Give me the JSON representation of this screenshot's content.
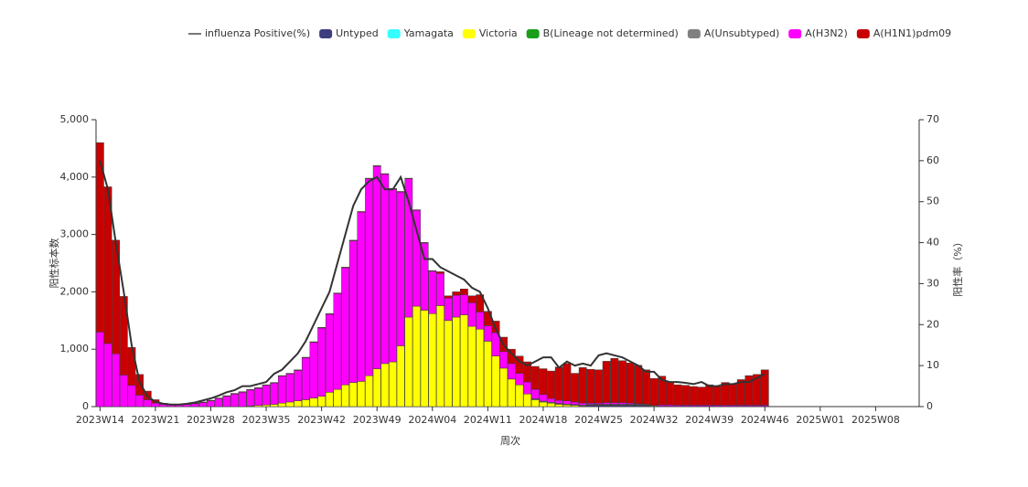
{
  "chart_data": {
    "type": "bar-line",
    "x_label": "周次",
    "y_label": "阳性标本数",
    "y2_label": "阳性率（%）",
    "categories": [
      "2023W14",
      null,
      null,
      null,
      null,
      null,
      null,
      "2023W21",
      null,
      null,
      null,
      null,
      null,
      null,
      "2023W28",
      null,
      null,
      null,
      null,
      null,
      null,
      "2023W35",
      null,
      null,
      null,
      null,
      null,
      null,
      "2023W42",
      null,
      null,
      null,
      null,
      null,
      null,
      "2023W49",
      null,
      null,
      null,
      null,
      null,
      null,
      "2024W04",
      null,
      null,
      null,
      null,
      null,
      null,
      "2024W11",
      null,
      null,
      null,
      null,
      null,
      null,
      "2024W18",
      null,
      null,
      null,
      null,
      null,
      null,
      "2024W25",
      null,
      null,
      null,
      null,
      null,
      null,
      "2024W32",
      null,
      null,
      null,
      null,
      null,
      null,
      "2024W39",
      null,
      null,
      null,
      null,
      null,
      null,
      "2024W46",
      null,
      null,
      null,
      null,
      null,
      null,
      "2025W01",
      null,
      null,
      null,
      null,
      null,
      null,
      "2025W08",
      null,
      null,
      null,
      null,
      null
    ],
    "ylim": [
      0,
      5000
    ],
    "yticks": [
      0,
      {
        "value": 1000,
        "label": "1,000"
      },
      {
        "value": 2000,
        "label": "2,000"
      },
      {
        "value": 3000,
        "label": "3,000"
      },
      {
        "value": 4000,
        "label": "4,000"
      },
      {
        "value": 5000,
        "label": "5,000"
      }
    ],
    "y2lim": [
      0,
      70
    ],
    "y2ticks": [
      0,
      10,
      20,
      30,
      40,
      50,
      60,
      70
    ],
    "series": [
      {
        "name": "influenza Positive(%)",
        "type": "line",
        "axis": "y2",
        "color": "#333333",
        "values": [
          60,
          53,
          40,
          28,
          15,
          6,
          2.5,
          1.2,
          0.7,
          0.5,
          0.5,
          0.7,
          1,
          1.5,
          2,
          2.7,
          3.5,
          4,
          5,
          5,
          5.5,
          6,
          8,
          9,
          11,
          13,
          16,
          20,
          24,
          28,
          35,
          42,
          49,
          53,
          55,
          56,
          53,
          53,
          56,
          50,
          43,
          36,
          36,
          34,
          33,
          32,
          31,
          29,
          28,
          24,
          19,
          15,
          13,
          11,
          10,
          11,
          12,
          12,
          9.5,
          11,
          10,
          10.5,
          10,
          12.5,
          13,
          12.5,
          12,
          11,
          10,
          8.5,
          8.5,
          6.5,
          6,
          6,
          5.8,
          5.5,
          6,
          5,
          5,
          5.5,
          5.5,
          6,
          6,
          7,
          8,
          null,
          null,
          null,
          null,
          null,
          null,
          null,
          null,
          null,
          null,
          null,
          null,
          null,
          null,
          null,
          null,
          null,
          null,
          null
        ]
      },
      {
        "name": "Untyped",
        "color": "#3d3d80",
        "values": [
          0,
          0,
          0,
          0,
          0,
          0,
          0,
          0,
          0,
          0,
          0,
          0,
          0,
          0,
          0,
          0,
          0,
          0,
          0,
          0,
          0,
          0,
          0,
          0,
          0,
          0,
          0,
          0,
          0,
          0,
          0,
          0,
          0,
          0,
          0,
          0,
          0,
          0,
          0,
          0,
          0,
          0,
          0,
          0,
          0,
          0,
          0,
          0,
          0,
          0,
          0,
          0,
          0,
          0,
          0,
          0,
          0,
          0,
          0,
          0,
          0,
          0,
          20,
          20,
          20,
          20,
          20,
          20,
          20,
          20,
          0,
          0,
          0,
          0,
          0,
          0,
          0,
          0,
          0,
          0,
          0,
          0,
          0,
          0,
          0,
          null,
          null,
          null,
          null,
          null,
          null,
          null,
          null,
          null,
          null,
          null,
          null,
          null,
          null,
          null,
          null,
          null,
          null,
          null
        ]
      },
      {
        "name": "Yamagata",
        "color": "#33ffff",
        "values": [
          0,
          0,
          0,
          0,
          0,
          0,
          0,
          0,
          0,
          0,
          0,
          0,
          0,
          0,
          0,
          0,
          0,
          0,
          0,
          0,
          0,
          0,
          0,
          0,
          0,
          0,
          0,
          0,
          0,
          0,
          0,
          0,
          0,
          0,
          0,
          0,
          0,
          0,
          0,
          0,
          0,
          0,
          0,
          0,
          0,
          0,
          0,
          0,
          0,
          0,
          0,
          0,
          0,
          0,
          0,
          0,
          0,
          0,
          0,
          0,
          0,
          0,
          0,
          0,
          0,
          0,
          0,
          0,
          0,
          0,
          0,
          0,
          0,
          0,
          0,
          0,
          0,
          0,
          0,
          0,
          0,
          0,
          0,
          0,
          0,
          null,
          null,
          null,
          null,
          null,
          null,
          null,
          null,
          null,
          null,
          null,
          null,
          null,
          null,
          null,
          null,
          null,
          null,
          null
        ]
      },
      {
        "name": "Victoria",
        "color": "#ffff00",
        "values": [
          0,
          0,
          0,
          0,
          0,
          0,
          0,
          0,
          0,
          0,
          0,
          0,
          0,
          0,
          0,
          0,
          0,
          0,
          0,
          10,
          20,
          30,
          40,
          60,
          80,
          100,
          120,
          150,
          180,
          250,
          300,
          380,
          420,
          440,
          540,
          660,
          750,
          780,
          1060,
          1560,
          1750,
          1680,
          1620,
          1760,
          1500,
          1560,
          1600,
          1400,
          1350,
          1140,
          880,
          670,
          480,
          380,
          220,
          120,
          80,
          60,
          40,
          30,
          20,
          10,
          5,
          5,
          5,
          5,
          5,
          5,
          5,
          5,
          5,
          5,
          5,
          5,
          5,
          5,
          5,
          5,
          5,
          5,
          5,
          5,
          5,
          5,
          5,
          null,
          null,
          null,
          null,
          null,
          null,
          null,
          null,
          null,
          null,
          null,
          null,
          null,
          null,
          null,
          null,
          null,
          null,
          null
        ]
      },
      {
        "name": "B(Lineage not determined)",
        "color": "#1a9e1a",
        "values": [
          0,
          0,
          0,
          0,
          0,
          0,
          0,
          0,
          0,
          0,
          0,
          0,
          0,
          0,
          0,
          0,
          0,
          0,
          0,
          0,
          0,
          0,
          0,
          0,
          0,
          0,
          0,
          0,
          0,
          0,
          0,
          0,
          0,
          0,
          0,
          0,
          0,
          0,
          0,
          0,
          0,
          0,
          0,
          0,
          0,
          0,
          0,
          0,
          0,
          0,
          0,
          0,
          0,
          0,
          0,
          0,
          0,
          0,
          0,
          0,
          0,
          0,
          0,
          0,
          0,
          0,
          0,
          0,
          0,
          0,
          0,
          0,
          0,
          0,
          0,
          0,
          0,
          0,
          0,
          0,
          0,
          0,
          0,
          0,
          0,
          null,
          null,
          null,
          null,
          null,
          null,
          null,
          null,
          null,
          null,
          null,
          null,
          null,
          null,
          null,
          null,
          null,
          null,
          null
        ]
      },
      {
        "name": "A(Unsubtyped)",
        "color": "#808080",
        "values": [
          0,
          0,
          0,
          0,
          0,
          0,
          0,
          0,
          0,
          0,
          0,
          0,
          0,
          0,
          0,
          0,
          0,
          0,
          0,
          0,
          0,
          0,
          0,
          0,
          0,
          0,
          0,
          0,
          0,
          0,
          0,
          0,
          0,
          0,
          0,
          0,
          0,
          0,
          0,
          0,
          0,
          0,
          0,
          0,
          0,
          0,
          0,
          0,
          0,
          0,
          0,
          0,
          0,
          0,
          0,
          15,
          15,
          15,
          15,
          15,
          15,
          15,
          15,
          15,
          15,
          15,
          15,
          15,
          15,
          15,
          15,
          0,
          0,
          0,
          0,
          0,
          0,
          0,
          0,
          0,
          0,
          0,
          0,
          0,
          0,
          null,
          null,
          null,
          null,
          null,
          null,
          null,
          null,
          null,
          null,
          null,
          null,
          null,
          null,
          null,
          null,
          null,
          null,
          null
        ]
      },
      {
        "name": "A(H3N2)",
        "color": "#ff00ff",
        "values": [
          1300,
          1100,
          920,
          550,
          370,
          200,
          120,
          60,
          40,
          30,
          30,
          40,
          50,
          70,
          100,
          140,
          180,
          220,
          250,
          280,
          300,
          340,
          370,
          470,
          490,
          530,
          730,
          970,
          1190,
          1360,
          1670,
          2040,
          2470,
          2950,
          3430,
          3530,
          3300,
          3010,
          2680,
          2410,
          1670,
          1170,
          740,
          560,
          390,
          380,
          350,
          410,
          300,
          270,
          410,
          290,
          270,
          200,
          210,
          165,
          115,
          65,
          55,
          55,
          45,
          35,
          20,
          20,
          30,
          30,
          30,
          20,
          10,
          0,
          0,
          25,
          25,
          20,
          20,
          20,
          20,
          20,
          20,
          20,
          20,
          20,
          20,
          20,
          20,
          null,
          null,
          null,
          null,
          null,
          null,
          null,
          null,
          null,
          null,
          null,
          null,
          null,
          null,
          null,
          null,
          null,
          null,
          null
        ]
      },
      {
        "name": "A(H1N1)pdm09",
        "color": "#c80000",
        "values": [
          3300,
          2730,
          1980,
          1370,
          660,
          360,
          150,
          60,
          20,
          10,
          10,
          10,
          10,
          10,
          10,
          10,
          10,
          10,
          10,
          10,
          10,
          10,
          10,
          10,
          10,
          10,
          10,
          10,
          10,
          10,
          10,
          10,
          10,
          10,
          10,
          10,
          10,
          10,
          10,
          10,
          10,
          10,
          10,
          30,
          40,
          60,
          100,
          120,
          300,
          250,
          200,
          250,
          250,
          300,
          350,
          400,
          450,
          480,
          580,
          650,
          500,
          620,
          590,
          580,
          720,
          770,
          730,
          700,
          670,
          600,
          470,
          500,
          400,
          355,
          345,
          325,
          315,
          355,
          325,
          395,
          375,
          445,
          515,
          535,
          615,
          null,
          null,
          null,
          null,
          null,
          null,
          null,
          null,
          null,
          null,
          null,
          null,
          null,
          null,
          null,
          null,
          null,
          null,
          null
        ]
      }
    ]
  }
}
